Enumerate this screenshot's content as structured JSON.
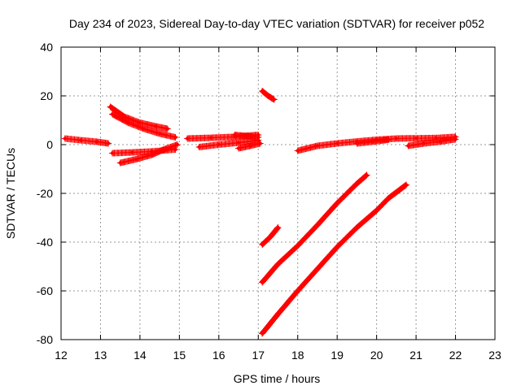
{
  "chart_data": {
    "type": "scatter",
    "title": "Day 234 of 2023, Sidereal Day-to-day VTEC variation (SDTVAR) for receiver p052",
    "xlabel": "GPS time / hours",
    "ylabel": "SDTVAR / TECUs",
    "xlim": [
      12,
      23
    ],
    "ylim": [
      -80,
      40
    ],
    "xticks": [
      12,
      13,
      14,
      15,
      16,
      17,
      18,
      19,
      20,
      21,
      22,
      23
    ],
    "yticks": [
      -80,
      -60,
      -40,
      -20,
      0,
      20,
      40
    ],
    "grid": true,
    "marker_color": "#ff0000",
    "series": [
      {
        "x": [
          12.1,
          12.5,
          12.9,
          13.2
        ],
        "y": [
          2.5,
          1.8,
          1.2,
          0.5
        ]
      },
      {
        "x": [
          13.25,
          13.6,
          14.0,
          14.4,
          14.7
        ],
        "y": [
          15.5,
          11.5,
          9.0,
          7.5,
          6.5
        ]
      },
      {
        "x": [
          13.3,
          13.7,
          14.1,
          14.5,
          14.9
        ],
        "y": [
          12.5,
          9.0,
          6.5,
          4.5,
          3.0
        ]
      },
      {
        "x": [
          13.3,
          13.8,
          14.3,
          14.9
        ],
        "y": [
          -3.5,
          -3.2,
          -2.8,
          -2.0
        ]
      },
      {
        "x": [
          13.5,
          13.9,
          14.3,
          14.6,
          14.95
        ],
        "y": [
          -7.5,
          -6.0,
          -4.2,
          -2.0,
          0.0
        ]
      },
      {
        "x": [
          15.2,
          15.8,
          16.4,
          17.0
        ],
        "y": [
          2.5,
          2.8,
          3.2,
          4.0
        ]
      },
      {
        "x": [
          15.5,
          16.0,
          16.5,
          17.0
        ],
        "y": [
          -1.0,
          0.0,
          0.8,
          1.8
        ]
      },
      {
        "x": [
          16.5,
          16.8,
          17.05
        ],
        "y": [
          -1.5,
          -0.5,
          0.5
        ]
      },
      {
        "x": [
          16.4,
          16.7,
          17.0
        ],
        "y": [
          4.0,
          3.5,
          3.0
        ]
      },
      {
        "x": [
          17.1,
          17.25,
          17.4
        ],
        "y": [
          22.0,
          20.0,
          18.5
        ]
      },
      {
        "x": [
          17.1,
          17.3,
          17.5
        ],
        "y": [
          -41.0,
          -38.0,
          -34.0
        ]
      },
      {
        "x": [
          17.1,
          17.5,
          18.0,
          18.5,
          19.0,
          19.5,
          19.75
        ],
        "y": [
          -56.5,
          -49.0,
          -41.5,
          -33.0,
          -24.0,
          -16.0,
          -12.5
        ]
      },
      {
        "x": [
          17.1,
          17.5,
          18.0,
          18.5,
          19.0,
          19.5,
          20.0,
          20.3,
          20.75
        ],
        "y": [
          -77.5,
          -69.5,
          -60.0,
          -51.0,
          -42.0,
          -34.0,
          -27.0,
          -22.0,
          -16.5
        ]
      },
      {
        "x": [
          18.0,
          18.5,
          19.0,
          19.5,
          20.0,
          20.5,
          21.0,
          21.5,
          22.0
        ],
        "y": [
          -2.5,
          -0.5,
          0.5,
          1.3,
          2.0,
          2.5,
          2.6,
          2.7,
          3.2
        ]
      },
      {
        "x": [
          19.5,
          19.9,
          20.3
        ],
        "y": [
          0.5,
          1.2,
          2.0
        ]
      },
      {
        "x": [
          20.8,
          21.2,
          21.6,
          22.0
        ],
        "y": [
          -0.5,
          0.5,
          1.2,
          2.2
        ]
      }
    ]
  }
}
